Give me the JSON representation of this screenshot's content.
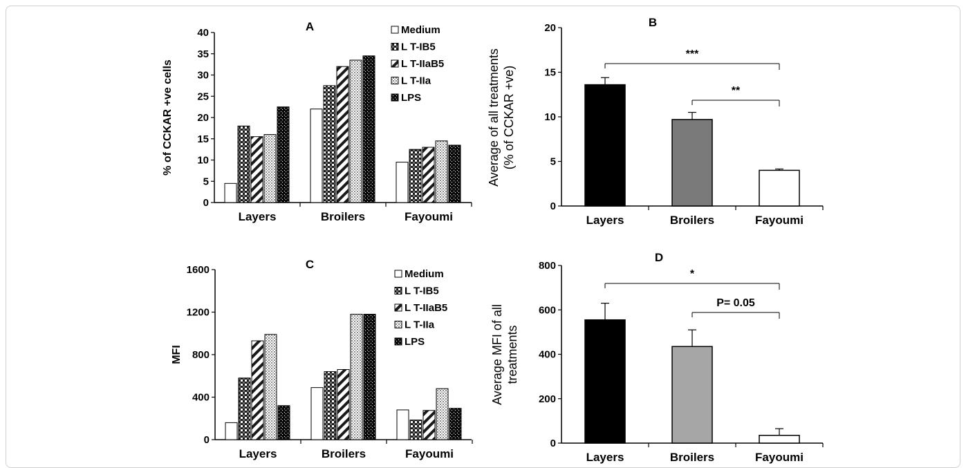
{
  "chart_data": [
    {
      "panel": "A",
      "type": "bar",
      "categories": [
        "Layers",
        "Broilers",
        "Fayoumi"
      ],
      "series": [
        {
          "name": "Medium",
          "values": [
            4.5,
            22,
            9.5
          ]
        },
        {
          "name": "LT-IB5",
          "values": [
            18,
            27.5,
            12.5
          ]
        },
        {
          "name": "LT-IIaB5",
          "values": [
            15.5,
            32,
            13
          ]
        },
        {
          "name": "LT-IIa",
          "values": [
            16,
            33.5,
            14.5
          ]
        },
        {
          "name": "LPS",
          "values": [
            22.5,
            34.5,
            13.5
          ]
        }
      ],
      "ylabel": "% of CCKAR +ve cells",
      "ylim": [
        0,
        40
      ],
      "yticks": [
        "0",
        "5",
        "10",
        "15",
        "20",
        "25",
        "30",
        "35",
        "40"
      ],
      "legend_position": "top-right"
    },
    {
      "panel": "B",
      "type": "bar",
      "categories": [
        "Layers",
        "Broilers",
        "Fayoumi"
      ],
      "values": [
        13.6,
        9.7,
        4.0
      ],
      "errors": [
        0.8,
        0.8,
        0.15
      ],
      "ylabel": "Average of all treatments (% of CCKAR +ve)",
      "ylim": [
        0,
        20
      ],
      "yticks": [
        "0",
        "5",
        "10",
        "15",
        "20"
      ],
      "annotations": [
        {
          "from": "Layers",
          "to": "Fayoumi",
          "text": "***"
        },
        {
          "from": "Broilers",
          "to": "Fayoumi",
          "text": "**"
        }
      ]
    },
    {
      "panel": "C",
      "type": "bar",
      "categories": [
        "Layers",
        "Broilers",
        "Fayoumi"
      ],
      "series": [
        {
          "name": "Medium",
          "values": [
            160,
            490,
            280
          ]
        },
        {
          "name": "LT-IB5",
          "values": [
            580,
            640,
            185
          ]
        },
        {
          "name": "LT-IIaB5",
          "values": [
            930,
            660,
            275
          ]
        },
        {
          "name": "LT-IIa",
          "values": [
            990,
            1180,
            480
          ]
        },
        {
          "name": "LPS",
          "values": [
            320,
            1180,
            295
          ]
        }
      ],
      "ylabel": "MFI",
      "ylim": [
        0,
        1600
      ],
      "yticks": [
        "0",
        "400",
        "800",
        "1200",
        "1600"
      ],
      "legend_position": "top-right"
    },
    {
      "panel": "D",
      "type": "bar",
      "categories": [
        "Layers",
        "Broilers",
        "Fayoumi"
      ],
      "values": [
        555,
        435,
        35
      ],
      "errors": [
        75,
        75,
        30
      ],
      "ylabel": "Average MFI of all treatments",
      "ylim": [
        0,
        800
      ],
      "yticks": [
        "0",
        "200",
        "400",
        "600",
        "800"
      ],
      "annotations": [
        {
          "from": "Layers",
          "to": "Fayoumi",
          "text": "*"
        },
        {
          "from": "Broilers",
          "to": "Fayoumi",
          "text": "P= 0.05"
        }
      ]
    }
  ],
  "legend_labels": [
    "Medium",
    "LT-IB5",
    "LT-IIaB5",
    "LT-IIa",
    "LPS"
  ],
  "legend_labels_display": [
    "Medium",
    "L T-IB5",
    "L T-IIaB5",
    "L T-IIa",
    "LPS"
  ],
  "colors": {
    "B_bars": [
      "#000000",
      "#7a7a7a",
      "#ffffff"
    ],
    "D_bars": [
      "#000000",
      "#a6a6a6",
      "#ffffff"
    ]
  }
}
